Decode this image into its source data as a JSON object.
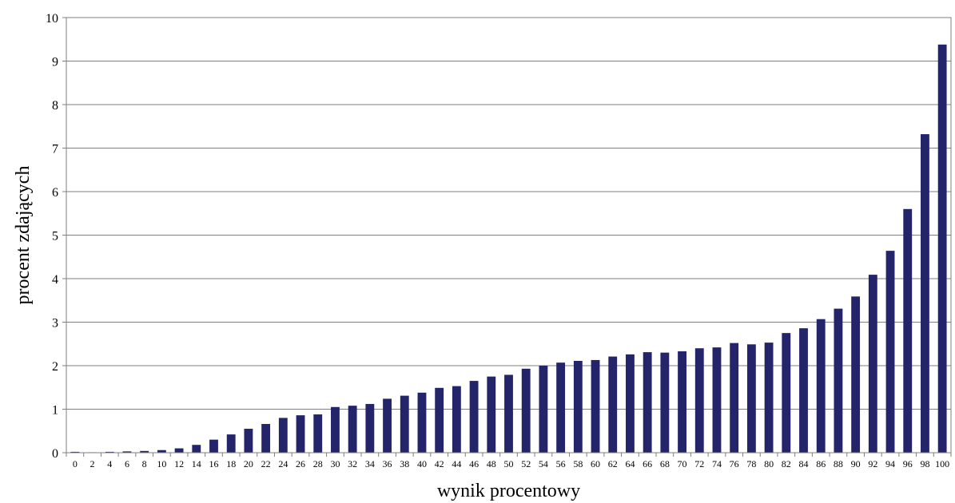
{
  "chart_data": {
    "type": "bar",
    "title": "",
    "xlabel": "wynik procentowy",
    "ylabel": "procent zdających",
    "ylim": [
      0,
      10
    ],
    "yticks": [
      0,
      1,
      2,
      3,
      4,
      5,
      6,
      7,
      8,
      9,
      10
    ],
    "grid": true,
    "bar_color": "#24246b",
    "categories": [
      "0",
      "2",
      "4",
      "6",
      "8",
      "10",
      "12",
      "14",
      "16",
      "18",
      "20",
      "22",
      "24",
      "26",
      "28",
      "30",
      "32",
      "34",
      "36",
      "38",
      "40",
      "42",
      "44",
      "46",
      "48",
      "50",
      "52",
      "54",
      "56",
      "58",
      "60",
      "62",
      "64",
      "66",
      "68",
      "70",
      "72",
      "74",
      "76",
      "78",
      "80",
      "82",
      "84",
      "86",
      "88",
      "90",
      "92",
      "94",
      "96",
      "98",
      "100"
    ],
    "values": [
      0.02,
      0.01,
      0.02,
      0.03,
      0.04,
      0.06,
      0.1,
      0.18,
      0.3,
      0.42,
      0.55,
      0.66,
      0.8,
      0.86,
      0.88,
      1.05,
      1.08,
      1.12,
      1.24,
      1.31,
      1.38,
      1.49,
      1.53,
      1.65,
      1.75,
      1.79,
      1.93,
      2.0,
      2.07,
      2.11,
      2.13,
      2.21,
      2.26,
      2.31,
      2.3,
      2.33,
      2.4,
      2.42,
      2.52,
      2.49,
      2.53,
      2.75,
      2.86,
      3.07,
      3.31,
      3.59,
      4.09,
      4.64,
      5.6,
      7.32,
      9.38
    ]
  }
}
